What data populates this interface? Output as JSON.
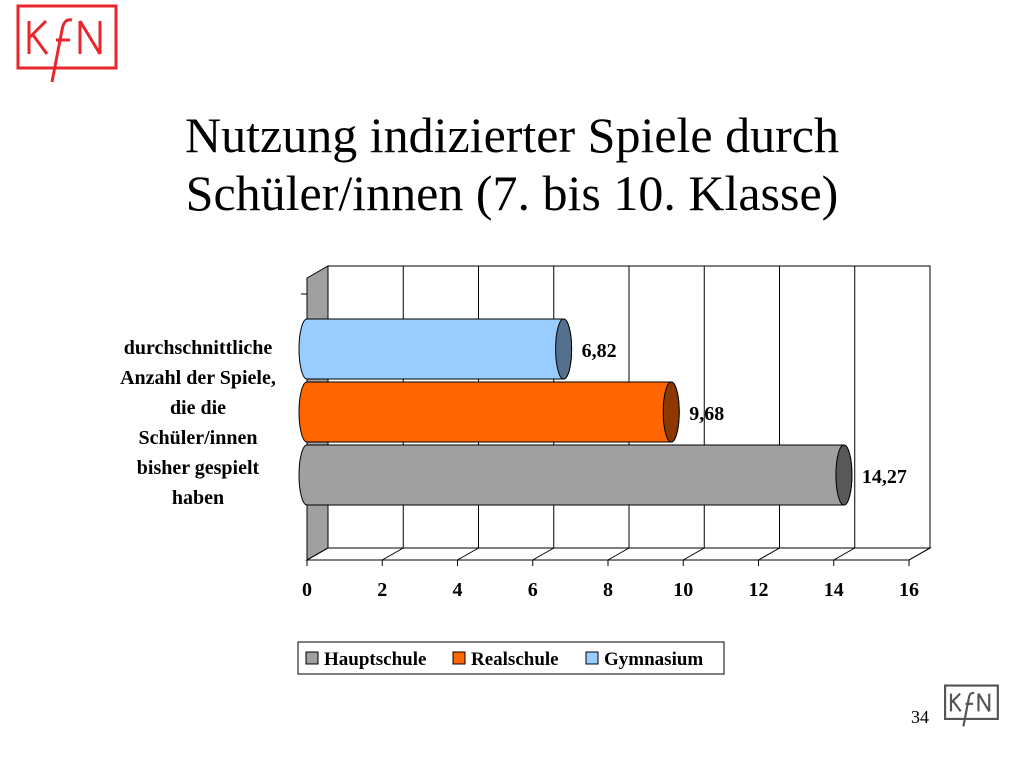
{
  "slide": {
    "title_line1": "Nutzung indizierter Spiele durch",
    "title_line2": "Schüler/innen (7. bis 10. Klasse)",
    "page_number": "34",
    "logo_text": "KfN"
  },
  "colors": {
    "Hauptschule": "#a0a0a0",
    "Realschule": "#ff6600",
    "Gymnasium": "#99ccff",
    "logo_red": "#e8262b"
  },
  "chart_data": {
    "type": "bar",
    "orientation": "horizontal",
    "style": "3d-cylinder",
    "categories": [
      "durchschnittliche Anzahl der Spiele, die die Schüler/innen bisher gespielt haben"
    ],
    "category_label_lines": [
      "durchschnittliche",
      "Anzahl der Spiele,",
      "die die",
      "Schüler/innen",
      "bisher gespielt",
      "haben"
    ],
    "series": [
      {
        "name": "Hauptschule",
        "values": [
          14.27
        ],
        "label": "14,27"
      },
      {
        "name": "Realschule",
        "values": [
          9.68
        ],
        "label": "9,68"
      },
      {
        "name": "Gymnasium",
        "values": [
          6.82
        ],
        "label": "6,82"
      }
    ],
    "xlim": [
      0,
      16
    ],
    "x_ticks": [
      "0",
      "2",
      "4",
      "6",
      "8",
      "10",
      "12",
      "14",
      "16"
    ],
    "grid": "vertical",
    "legend": [
      "Hauptschule",
      "Realschule",
      "Gymnasium"
    ],
    "legend_placement": "bottom"
  }
}
